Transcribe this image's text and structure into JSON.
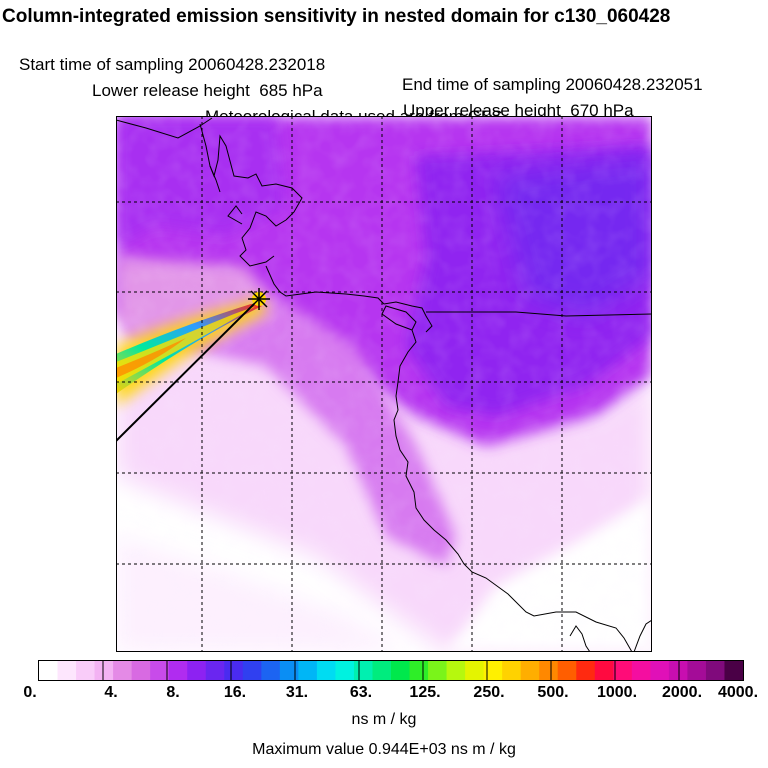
{
  "header": {
    "title": "Column-integrated emission sensitivity in nested domain for c130_060428",
    "start_label": "Start time of sampling 20060428.232018",
    "end_label": "End time of sampling 20060428.232051",
    "lower_label": "Lower release height  685 hPa",
    "upper_label": "Upper release height  670 hPa",
    "met_label": "Meteorological data used are from GFS"
  },
  "colorbar": {
    "ticks": [
      "0.",
      "4.",
      "8.",
      "16.",
      "31.",
      "63.",
      "125.",
      "250.",
      "500.",
      "1000.",
      "2000.",
      "4000."
    ],
    "colors": [
      "#ffffff",
      "#fde6fd",
      "#f9ccf9",
      "#f3b2f3",
      "#e48ae6",
      "#d86ae2",
      "#c84bea",
      "#b02cf0",
      "#8d22f2",
      "#6a26f0",
      "#4a2bf0",
      "#3040f0",
      "#1c64f2",
      "#0a8ef4",
      "#00b6f6",
      "#00dcf2",
      "#00f2e0",
      "#00f0b0",
      "#00ec7e",
      "#00e84c",
      "#2eee28",
      "#7af41a",
      "#b6f80e",
      "#e4f400",
      "#fff000",
      "#ffd200",
      "#ffae00",
      "#ff8800",
      "#ff5e00",
      "#ff2a10",
      "#ff0a40",
      "#ff0c78",
      "#f40ea0",
      "#e010b8",
      "#c80eb0",
      "#a40c98",
      "#800a7c",
      "#4a0046"
    ],
    "units": "ns m / kg"
  },
  "footer": {
    "max_value": "Maximum value  0.944E+03 ns m / kg"
  },
  "map": {
    "release_marker": "release-point-marker"
  }
}
